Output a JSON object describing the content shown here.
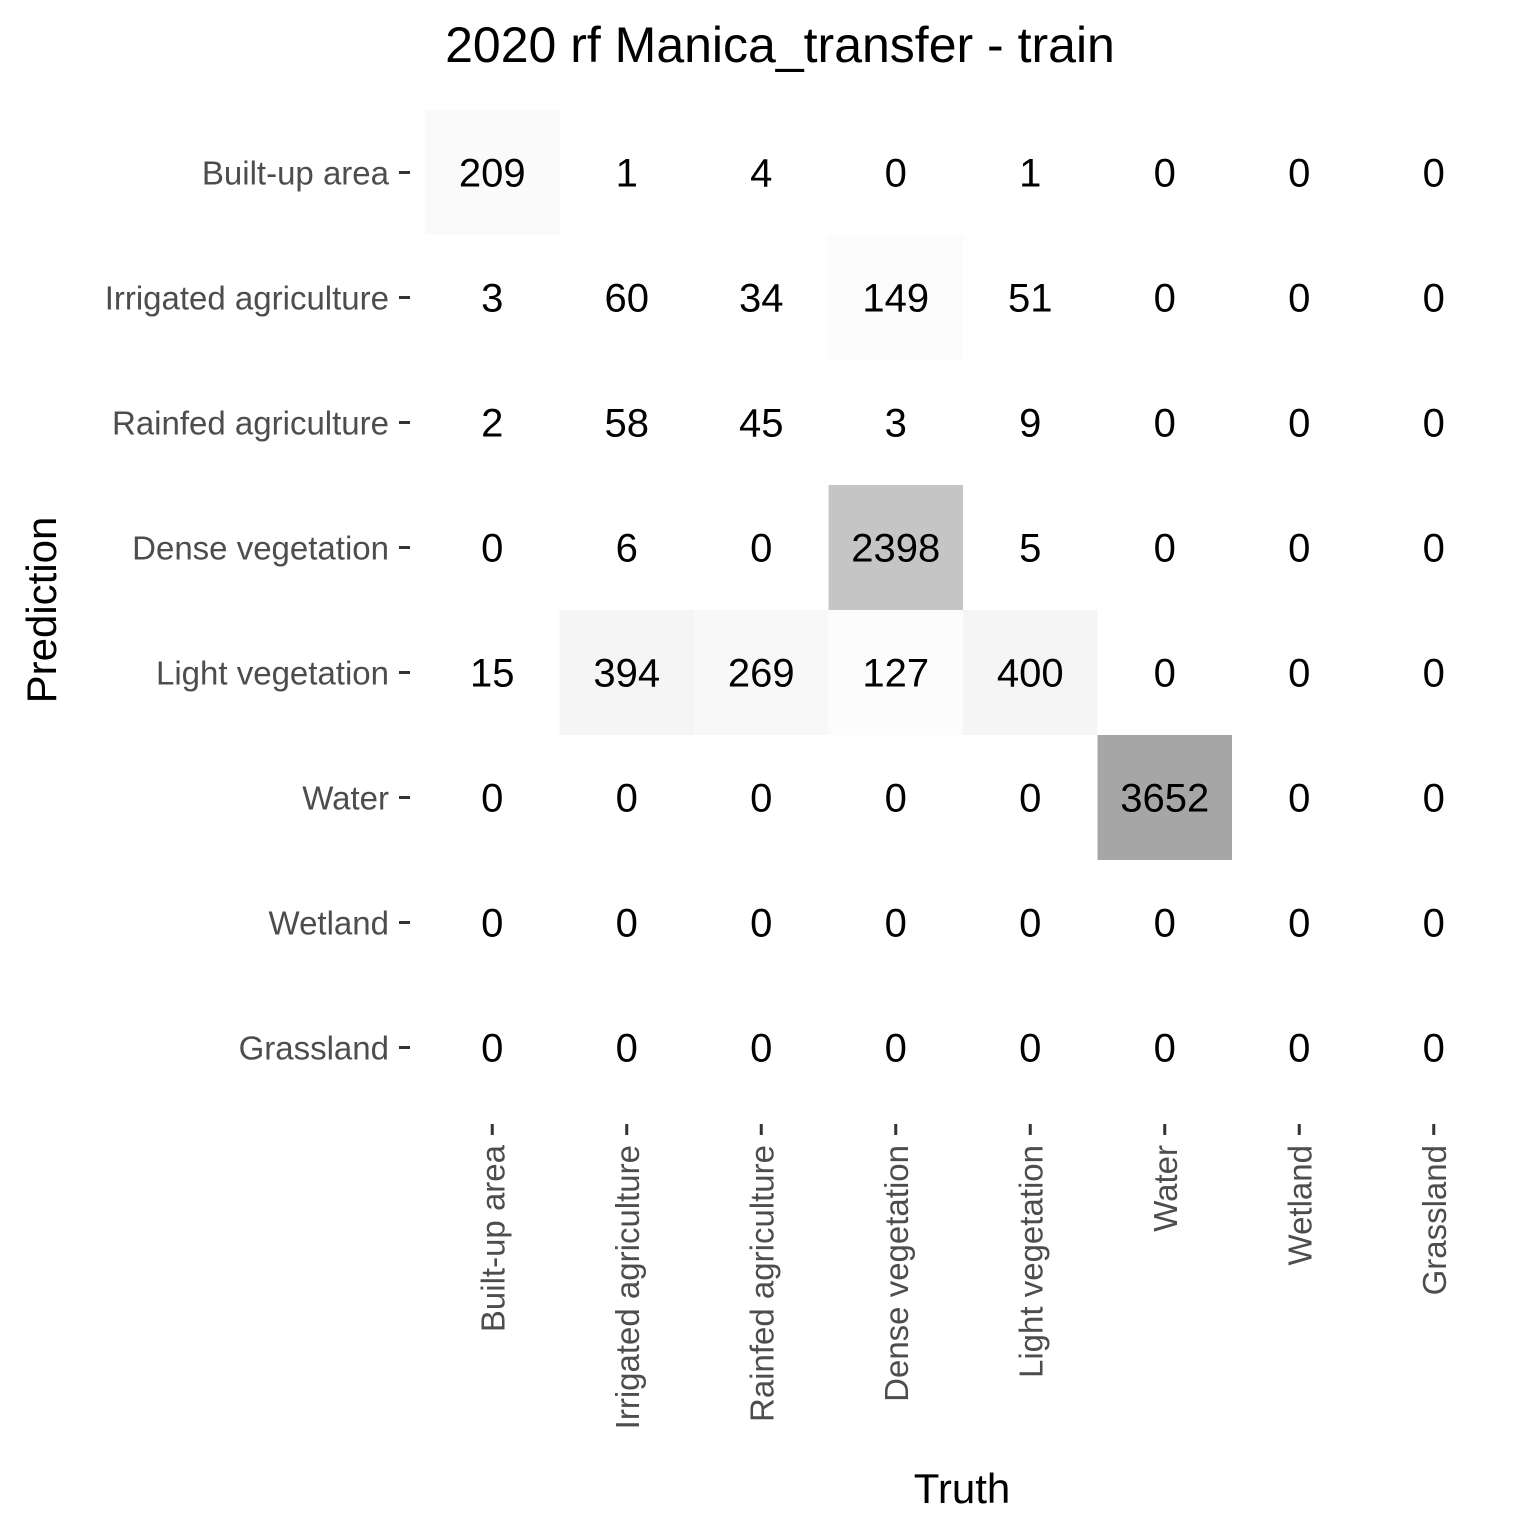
{
  "chart_data": {
    "type": "heatmap",
    "title": "2020 rf Manica_transfer - train",
    "xlabel": "Truth",
    "ylabel": "Prediction",
    "x_categories": [
      "Built-up area",
      "Irrigated agriculture",
      "Rainfed agriculture",
      "Dense vegetation",
      "Light vegetation",
      "Water",
      "Wetland",
      "Grassland"
    ],
    "y_categories": [
      "Built-up area",
      "Irrigated agriculture",
      "Rainfed agriculture",
      "Dense vegetation",
      "Light vegetation",
      "Water",
      "Wetland",
      "Grassland"
    ],
    "values": [
      [
        209,
        1,
        4,
        0,
        1,
        0,
        0,
        0
      ],
      [
        3,
        60,
        34,
        149,
        51,
        0,
        0,
        0
      ],
      [
        2,
        58,
        45,
        3,
        9,
        0,
        0,
        0
      ],
      [
        0,
        6,
        0,
        2398,
        5,
        0,
        0,
        0
      ],
      [
        15,
        394,
        269,
        127,
        400,
        0,
        0,
        0
      ],
      [
        0,
        0,
        0,
        0,
        0,
        3652,
        0,
        0
      ],
      [
        0,
        0,
        0,
        0,
        0,
        0,
        0,
        0
      ],
      [
        0,
        0,
        0,
        0,
        0,
        0,
        0,
        0
      ]
    ],
    "color_low": "#ffffff",
    "color_high": "#a6a6a6",
    "grid": false
  }
}
